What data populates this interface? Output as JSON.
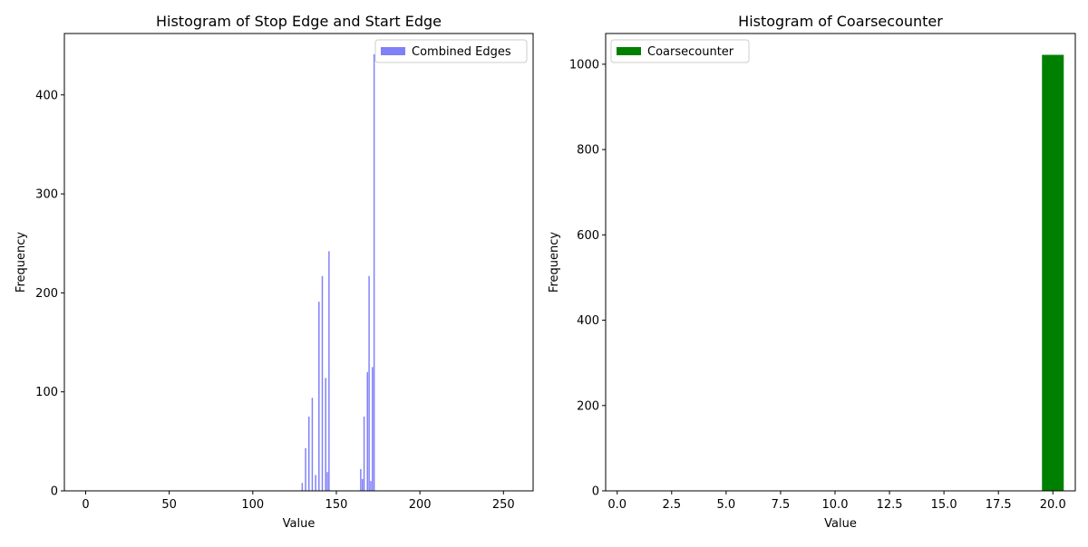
{
  "chart_data": [
    {
      "type": "bar",
      "title": "Histogram of Stop Edge and Start Edge",
      "xlabel": "Value",
      "ylabel": "Frequency",
      "xlim": [
        -12.75,
        267.75
      ],
      "ylim": [
        0,
        462
      ],
      "xticks": [
        0,
        50,
        100,
        150,
        200,
        250
      ],
      "yticks": [
        0,
        100,
        200,
        300,
        400
      ],
      "xtick_labels": [
        "0",
        "50",
        "100",
        "150",
        "200",
        "250"
      ],
      "ytick_labels": [
        "0",
        "100",
        "200",
        "300",
        "400"
      ],
      "bar_color": "#8080f8",
      "bin_width": 0.8,
      "legend": {
        "position": "top-right",
        "entries": [
          {
            "label": "Combined Edges",
            "color": "#8080f8"
          }
        ]
      },
      "bars": [
        {
          "x": 129.2,
          "value": 8
        },
        {
          "x": 131.2,
          "value": 43
        },
        {
          "x": 133.2,
          "value": 75
        },
        {
          "x": 135.2,
          "value": 94
        },
        {
          "x": 137.2,
          "value": 16
        },
        {
          "x": 139.2,
          "value": 191
        },
        {
          "x": 141.2,
          "value": 217
        },
        {
          "x": 143.2,
          "value": 114
        },
        {
          "x": 145.2,
          "value": 242
        },
        {
          "x": 144.2,
          "value": 19
        },
        {
          "x": 164.2,
          "value": 22
        },
        {
          "x": 165.2,
          "value": 12
        },
        {
          "x": 166.2,
          "value": 75
        },
        {
          "x": 168.2,
          "value": 120
        },
        {
          "x": 169.2,
          "value": 217
        },
        {
          "x": 170.2,
          "value": 10
        },
        {
          "x": 171.2,
          "value": 125
        },
        {
          "x": 172.2,
          "value": 441
        }
      ]
    },
    {
      "type": "bar",
      "title": "Histogram of Coarsecounter",
      "xlabel": "Value",
      "ylabel": "Frequency",
      "xlim": [
        -0.53,
        21.03
      ],
      "ylim": [
        0,
        1072
      ],
      "xticks": [
        0,
        2.5,
        5,
        7.5,
        10,
        12.5,
        15,
        17.5,
        20
      ],
      "yticks": [
        0,
        200,
        400,
        600,
        800,
        1000
      ],
      "xtick_labels": [
        "0.0",
        "2.5",
        "5.0",
        "7.5",
        "10.0",
        "12.5",
        "15.0",
        "17.5",
        "20.0"
      ],
      "ytick_labels": [
        "0",
        "200",
        "400",
        "600",
        "800",
        "1000"
      ],
      "bar_color": "#008000",
      "bin_width": 1.0,
      "legend": {
        "position": "top-left",
        "entries": [
          {
            "label": "Coarsecounter",
            "color": "#008000"
          }
        ]
      },
      "bars": [
        {
          "x": 19.5,
          "value": 1022
        }
      ]
    }
  ]
}
